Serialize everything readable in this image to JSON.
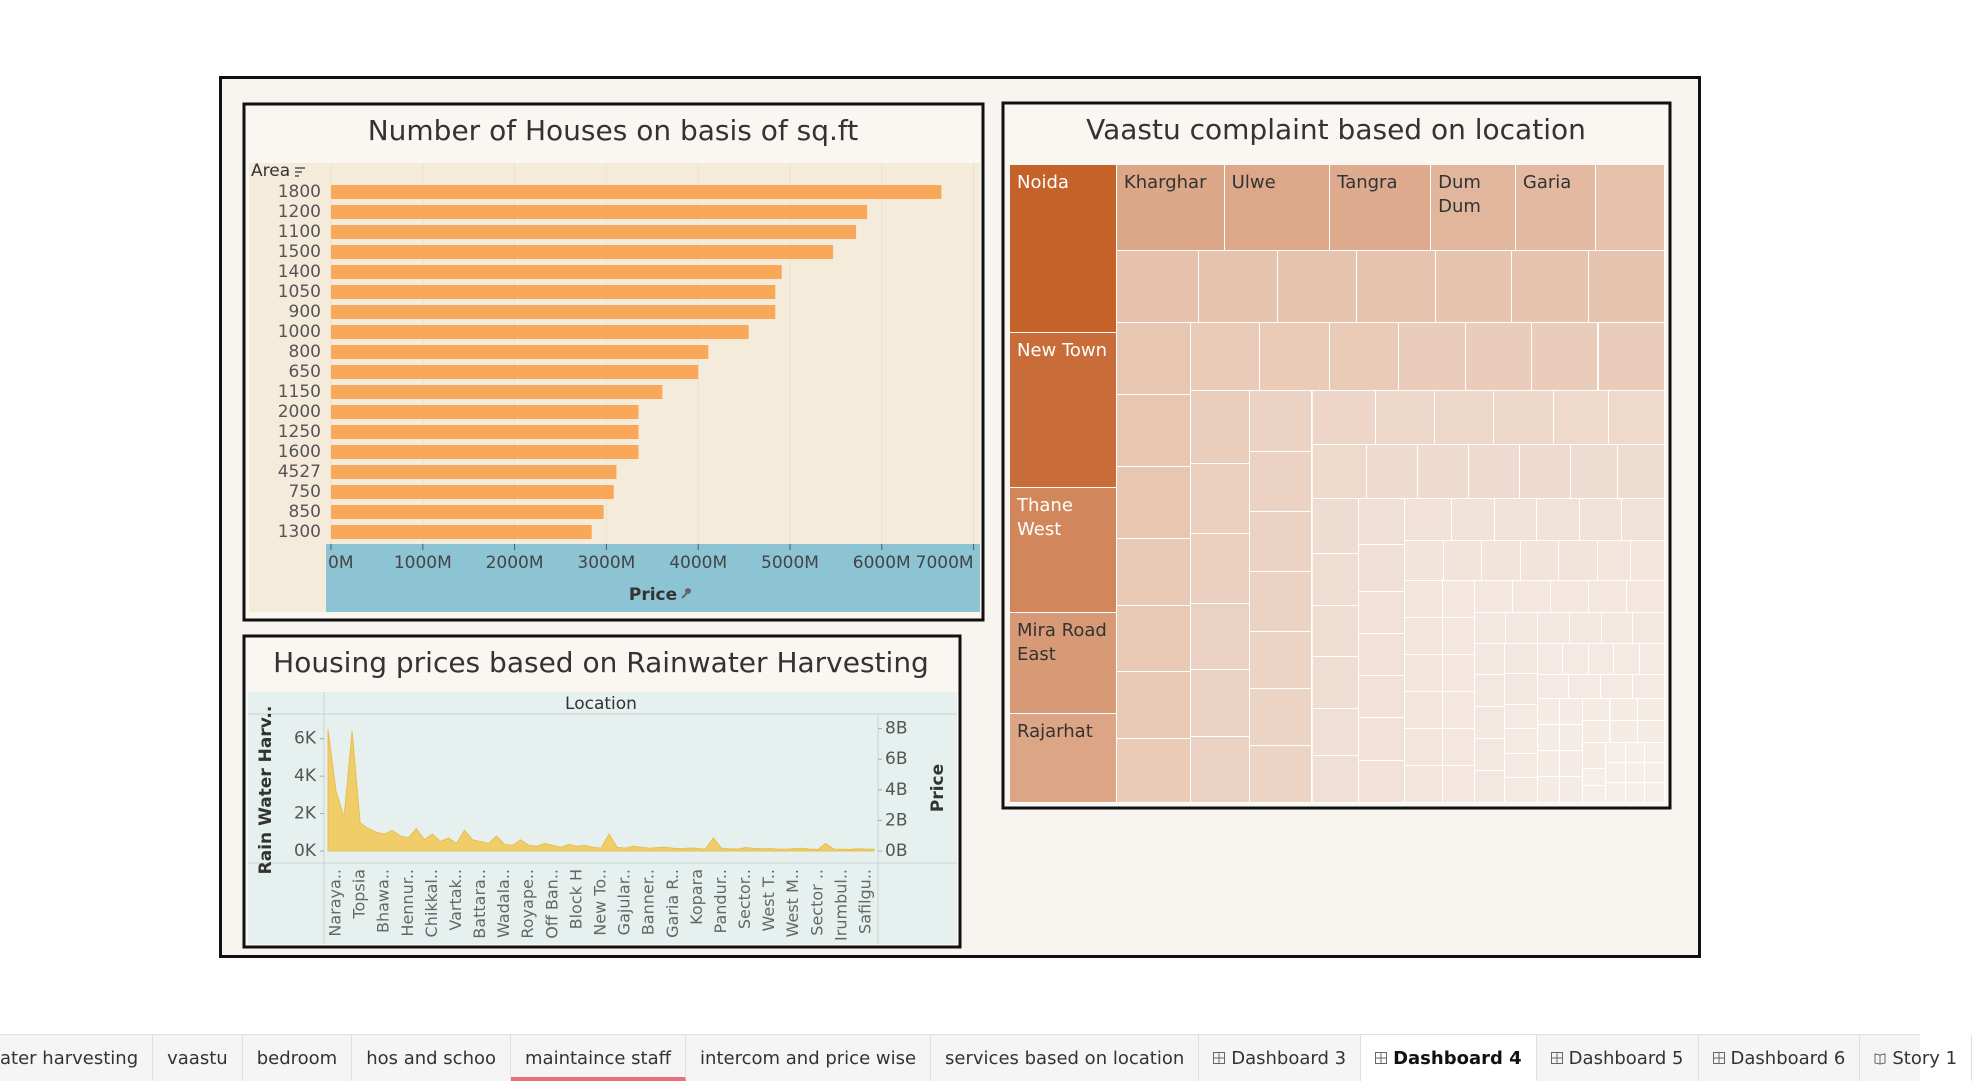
{
  "chart_data": [
    {
      "type": "bar",
      "orientation": "horizontal",
      "title": "Number of Houses on basis of sq.ft",
      "ylabel": "Area",
      "xlabel": "Price",
      "categories": [
        "1800",
        "1200",
        "1100",
        "1500",
        "1400",
        "1050",
        "900",
        "1000",
        "800",
        "650",
        "1150",
        "2000",
        "1250",
        "1600",
        "4527",
        "750",
        "850",
        "1300"
      ],
      "values": [
        6650,
        5840,
        5720,
        5470,
        4910,
        4840,
        4840,
        4550,
        4110,
        4000,
        3610,
        3350,
        3350,
        3350,
        3110,
        3080,
        2970,
        2840
      ],
      "color": "#f9a85a",
      "xlim": [
        0,
        7070
      ],
      "xticks": [
        {
          "value": 0,
          "label": "0M"
        },
        {
          "value": 1000,
          "label": "1000M"
        },
        {
          "value": 2000,
          "label": "2000M"
        },
        {
          "value": 3000,
          "label": "3000M"
        },
        {
          "value": 4000,
          "label": "4000M"
        },
        {
          "value": 5000,
          "label": "5000M"
        },
        {
          "value": 6000,
          "label": "6000M"
        },
        {
          "value": 7000,
          "label": "7000M"
        }
      ],
      "grid": true
    },
    {
      "type": "area",
      "title": "Housing prices based on Rainwater Harvesting",
      "xlabel": "Location",
      "ylabel": "Rain Water Harv..",
      "y2label": "Price",
      "categories": [
        "Naraya..",
        null,
        null,
        "Topsia",
        null,
        null,
        "Bhawa..",
        null,
        null,
        "Hennur..",
        null,
        null,
        "Chikkal..",
        null,
        null,
        "Vartak..",
        null,
        null,
        "Battara..",
        null,
        null,
        "Wadala..",
        null,
        null,
        "Royape..",
        null,
        null,
        "Off Ban..",
        null,
        null,
        "Block H",
        null,
        null,
        "New To..",
        null,
        null,
        "Gajular..",
        null,
        null,
        "Banner..",
        null,
        null,
        "Garia R..",
        null,
        null,
        "Kopara",
        null,
        null,
        "Pandur..",
        null,
        null,
        "Sector..",
        null,
        null,
        "West T..",
        null,
        null,
        "West M..",
        null,
        null,
        "Sector ..",
        null,
        null,
        "Irumbul..",
        null,
        null,
        "Safilgu..",
        null,
        null
      ],
      "values": [
        6500,
        3200,
        1800,
        6400,
        1500,
        1200,
        1000,
        900,
        1100,
        800,
        700,
        1200,
        600,
        900,
        500,
        700,
        400,
        1100,
        600,
        500,
        400,
        800,
        350,
        300,
        600,
        300,
        250,
        400,
        300,
        200,
        350,
        250,
        300,
        200,
        150,
        900,
        200,
        150,
        250,
        200,
        150,
        180,
        200,
        150,
        120,
        160,
        140,
        100,
        700,
        150,
        120,
        100,
        180,
        140,
        110,
        130,
        100,
        90,
        120,
        150,
        100,
        80,
        400,
        100,
        90,
        80,
        120,
        100,
        90
      ],
      "color": "#f0cd68",
      "ylim": [
        0,
        7000
      ],
      "yticks": [
        {
          "value": 0,
          "label": "0K"
        },
        {
          "value": 2000,
          "label": "2K"
        },
        {
          "value": 4000,
          "label": "4K"
        },
        {
          "value": 6000,
          "label": "6K"
        }
      ],
      "y2lim": [
        0,
        8.56
      ],
      "y2ticks": [
        {
          "value": 0,
          "label": "0B"
        },
        {
          "value": 2,
          "label": "2B"
        },
        {
          "value": 4,
          "label": "4B"
        },
        {
          "value": 6,
          "label": "6B"
        },
        {
          "value": 8,
          "label": "8B"
        }
      ]
    },
    {
      "type": "treemap",
      "title": "Vaastu complaint based on location",
      "categories": [
        "Noida",
        "New Town",
        "Thane West",
        "Mira Road East",
        "Rajarhat",
        "Kharghar",
        "Ulwe",
        "Tangra",
        "Dum Dum",
        "Garia",
        null,
        null,
        null,
        null,
        null,
        null,
        null,
        null,
        null,
        null,
        null,
        null,
        null,
        null,
        null,
        null,
        null,
        null,
        null,
        null,
        null,
        null,
        null,
        null,
        null,
        null,
        null,
        null,
        null,
        null,
        null,
        null,
        null,
        null,
        null,
        null,
        null,
        null,
        null,
        null,
        null,
        null,
        null,
        null,
        null,
        null,
        null,
        null,
        null,
        null,
        null,
        null,
        null,
        null,
        null,
        null,
        null,
        null,
        null,
        null,
        null,
        null,
        null,
        null,
        null,
        null,
        null,
        null,
        null,
        null,
        null,
        null,
        null,
        null,
        null,
        null,
        null,
        null,
        null,
        null,
        null,
        null,
        null,
        null,
        null,
        null,
        null,
        null,
        null,
        null,
        null,
        null,
        null,
        null,
        null,
        null,
        null,
        null,
        null,
        null,
        null,
        null,
        null,
        null,
        null,
        null,
        null,
        null,
        null,
        null,
        null,
        null,
        null,
        null,
        null,
        null,
        null,
        null,
        null,
        null,
        null,
        null,
        null,
        null,
        null,
        null,
        null,
        null,
        null,
        null,
        null,
        null,
        null,
        null,
        null,
        null,
        null,
        null,
        null,
        null,
        null,
        null,
        null
      ],
      "values": [
        91,
        84,
        68,
        55,
        48,
        47,
        46,
        44,
        37,
        35,
        30,
        30,
        29,
        29,
        29,
        28,
        28,
        28,
        27,
        27,
        27,
        25,
        25,
        25,
        24,
        24,
        24,
        24,
        23,
        23,
        23,
        23,
        22,
        21,
        21,
        20,
        20,
        20,
        19,
        19,
        19,
        19,
        18,
        18,
        18,
        17,
        16,
        16,
        16,
        15,
        15,
        15,
        14,
        14,
        14,
        14,
        13,
        13,
        13,
        12,
        12,
        12,
        11,
        11,
        11,
        11,
        10,
        10,
        10,
        10,
        10,
        10,
        9,
        9,
        9,
        9,
        9,
        8,
        8,
        8,
        8,
        8,
        7,
        7,
        7,
        7,
        7,
        7,
        7,
        7,
        6,
        6,
        6,
        6,
        6,
        6,
        6,
        6,
        6,
        6,
        6,
        5,
        5,
        5,
        5,
        5,
        5,
        5,
        5,
        5,
        5,
        5,
        5,
        5,
        4,
        4,
        4,
        4,
        4,
        4,
        4,
        4,
        4,
        4,
        4,
        4,
        4,
        3,
        3,
        3,
        3,
        3,
        3,
        3,
        3,
        3,
        3,
        3,
        3,
        3,
        3,
        3,
        2,
        2,
        2,
        2,
        2,
        2,
        2,
        2,
        2,
        2,
        2
      ],
      "color_range": [
        "#f5ede7",
        "#c4622a"
      ]
    }
  ],
  "tabs": [
    {
      "label": "ater harvesting",
      "kind": "sheet"
    },
    {
      "label": "vaastu",
      "kind": "sheet"
    },
    {
      "label": "bedroom",
      "kind": "sheet"
    },
    {
      "label": "hos and schoo",
      "kind": "sheet"
    },
    {
      "label": "maintaince staff",
      "kind": "sheet",
      "underlined": true
    },
    {
      "label": "intercom and price wise",
      "kind": "sheet"
    },
    {
      "label": "services based on location",
      "kind": "sheet"
    },
    {
      "label": "Dashboard 3",
      "kind": "dashboard"
    },
    {
      "label": "Dashboard 4",
      "kind": "dashboard",
      "active": true
    },
    {
      "label": "Dashboard 5",
      "kind": "dashboard"
    },
    {
      "label": "Dashboard 6",
      "kind": "dashboard"
    },
    {
      "label": "Story 1",
      "kind": "story"
    }
  ]
}
